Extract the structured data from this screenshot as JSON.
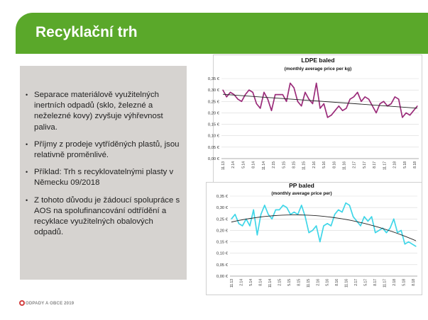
{
  "slide": {
    "title": "Recyklační trh",
    "footer": "ODPADY A OBCE 2019"
  },
  "bullets": [
    "Separace materiálově využitelných inertních odpadů (sklo, železné a neželezné kovy) zvyšuje výhřevnost paliva.",
    "Příjmy z prodeje vytříděných plastů, jsou relativně proměnlivé.",
    "Příklad: Trh s recyklovatelnými plasty v Německu 09/2018",
    "Z tohoto důvodu je žádoucí spolupráce s AOS na spolufinancování odtřídění a recyklace využitelných obalových odpadů."
  ],
  "colors": {
    "accent": "#5aa82a",
    "panel": "#d6d3d0",
    "ldpe_series": "#9b2c7a",
    "pp_series": "#3fd6e8",
    "trend": "#222222"
  },
  "chart_data": [
    {
      "type": "line",
      "title": "LDPE baled",
      "subtitle": "(monthly average price per kg)",
      "xlabel": "",
      "ylabel": "",
      "ylim": [
        0,
        0.35
      ],
      "y_ticks": [
        "0,00 €",
        "0,05 €",
        "0,10 €",
        "0,15 €",
        "0,20 €",
        "0,25 €",
        "0,30 €",
        "0,35 €"
      ],
      "x_tick_labels": [
        "11.13",
        "2.14",
        "5.14",
        "8.14",
        "11.14",
        "2.15",
        "5.15",
        "8.15",
        "11.15",
        "2.16",
        "5.16",
        "8.16",
        "11.16",
        "2.17",
        "5.17",
        "8.17",
        "11.17",
        "2.18",
        "5.18",
        "8.18"
      ],
      "values": [
        0.3,
        0.27,
        0.29,
        0.28,
        0.26,
        0.25,
        0.28,
        0.3,
        0.29,
        0.24,
        0.22,
        0.29,
        0.26,
        0.21,
        0.28,
        0.28,
        0.28,
        0.25,
        0.33,
        0.31,
        0.25,
        0.23,
        0.29,
        0.26,
        0.24,
        0.33,
        0.22,
        0.24,
        0.18,
        0.19,
        0.21,
        0.23,
        0.21,
        0.22,
        0.26,
        0.27,
        0.29,
        0.25,
        0.27,
        0.26,
        0.23,
        0.2,
        0.24,
        0.25,
        0.23,
        0.24,
        0.27,
        0.26,
        0.18,
        0.2,
        0.19,
        0.21,
        0.23
      ],
      "trend": "linear",
      "grid": true
    },
    {
      "type": "line",
      "title": "PP baled",
      "subtitle": "(monthly average price per)",
      "xlabel": "",
      "ylabel": "",
      "ylim": [
        0,
        0.35
      ],
      "y_ticks": [
        "0,00 €",
        "0,05 €",
        "0,10 €",
        "0,15 €",
        "0,20 €",
        "0,25 €",
        "0,30 €",
        "0,35 €"
      ],
      "x_tick_labels": [
        "11.13",
        "2.14",
        "5.14",
        "8.14",
        "11.14",
        "2.15",
        "5.15",
        "8.15",
        "11.15",
        "2.16",
        "5.16",
        "8.16",
        "11.16",
        "2.17",
        "5.17",
        "8.17",
        "11.17",
        "2.18",
        "5.18",
        "8.18"
      ],
      "values": [
        0.25,
        0.27,
        0.23,
        0.22,
        0.25,
        0.22,
        0.29,
        0.18,
        0.27,
        0.31,
        0.27,
        0.25,
        0.29,
        0.29,
        0.31,
        0.3,
        0.27,
        0.28,
        0.27,
        0.31,
        0.26,
        0.19,
        0.2,
        0.22,
        0.15,
        0.22,
        0.23,
        0.22,
        0.27,
        0.29,
        0.28,
        0.32,
        0.31,
        0.26,
        0.24,
        0.22,
        0.26,
        0.24,
        0.26,
        0.19,
        0.2,
        0.21,
        0.19,
        0.21,
        0.25,
        0.19,
        0.2,
        0.14,
        0.15,
        0.14,
        0.13
      ],
      "trend": "polynomial",
      "grid": true
    }
  ]
}
